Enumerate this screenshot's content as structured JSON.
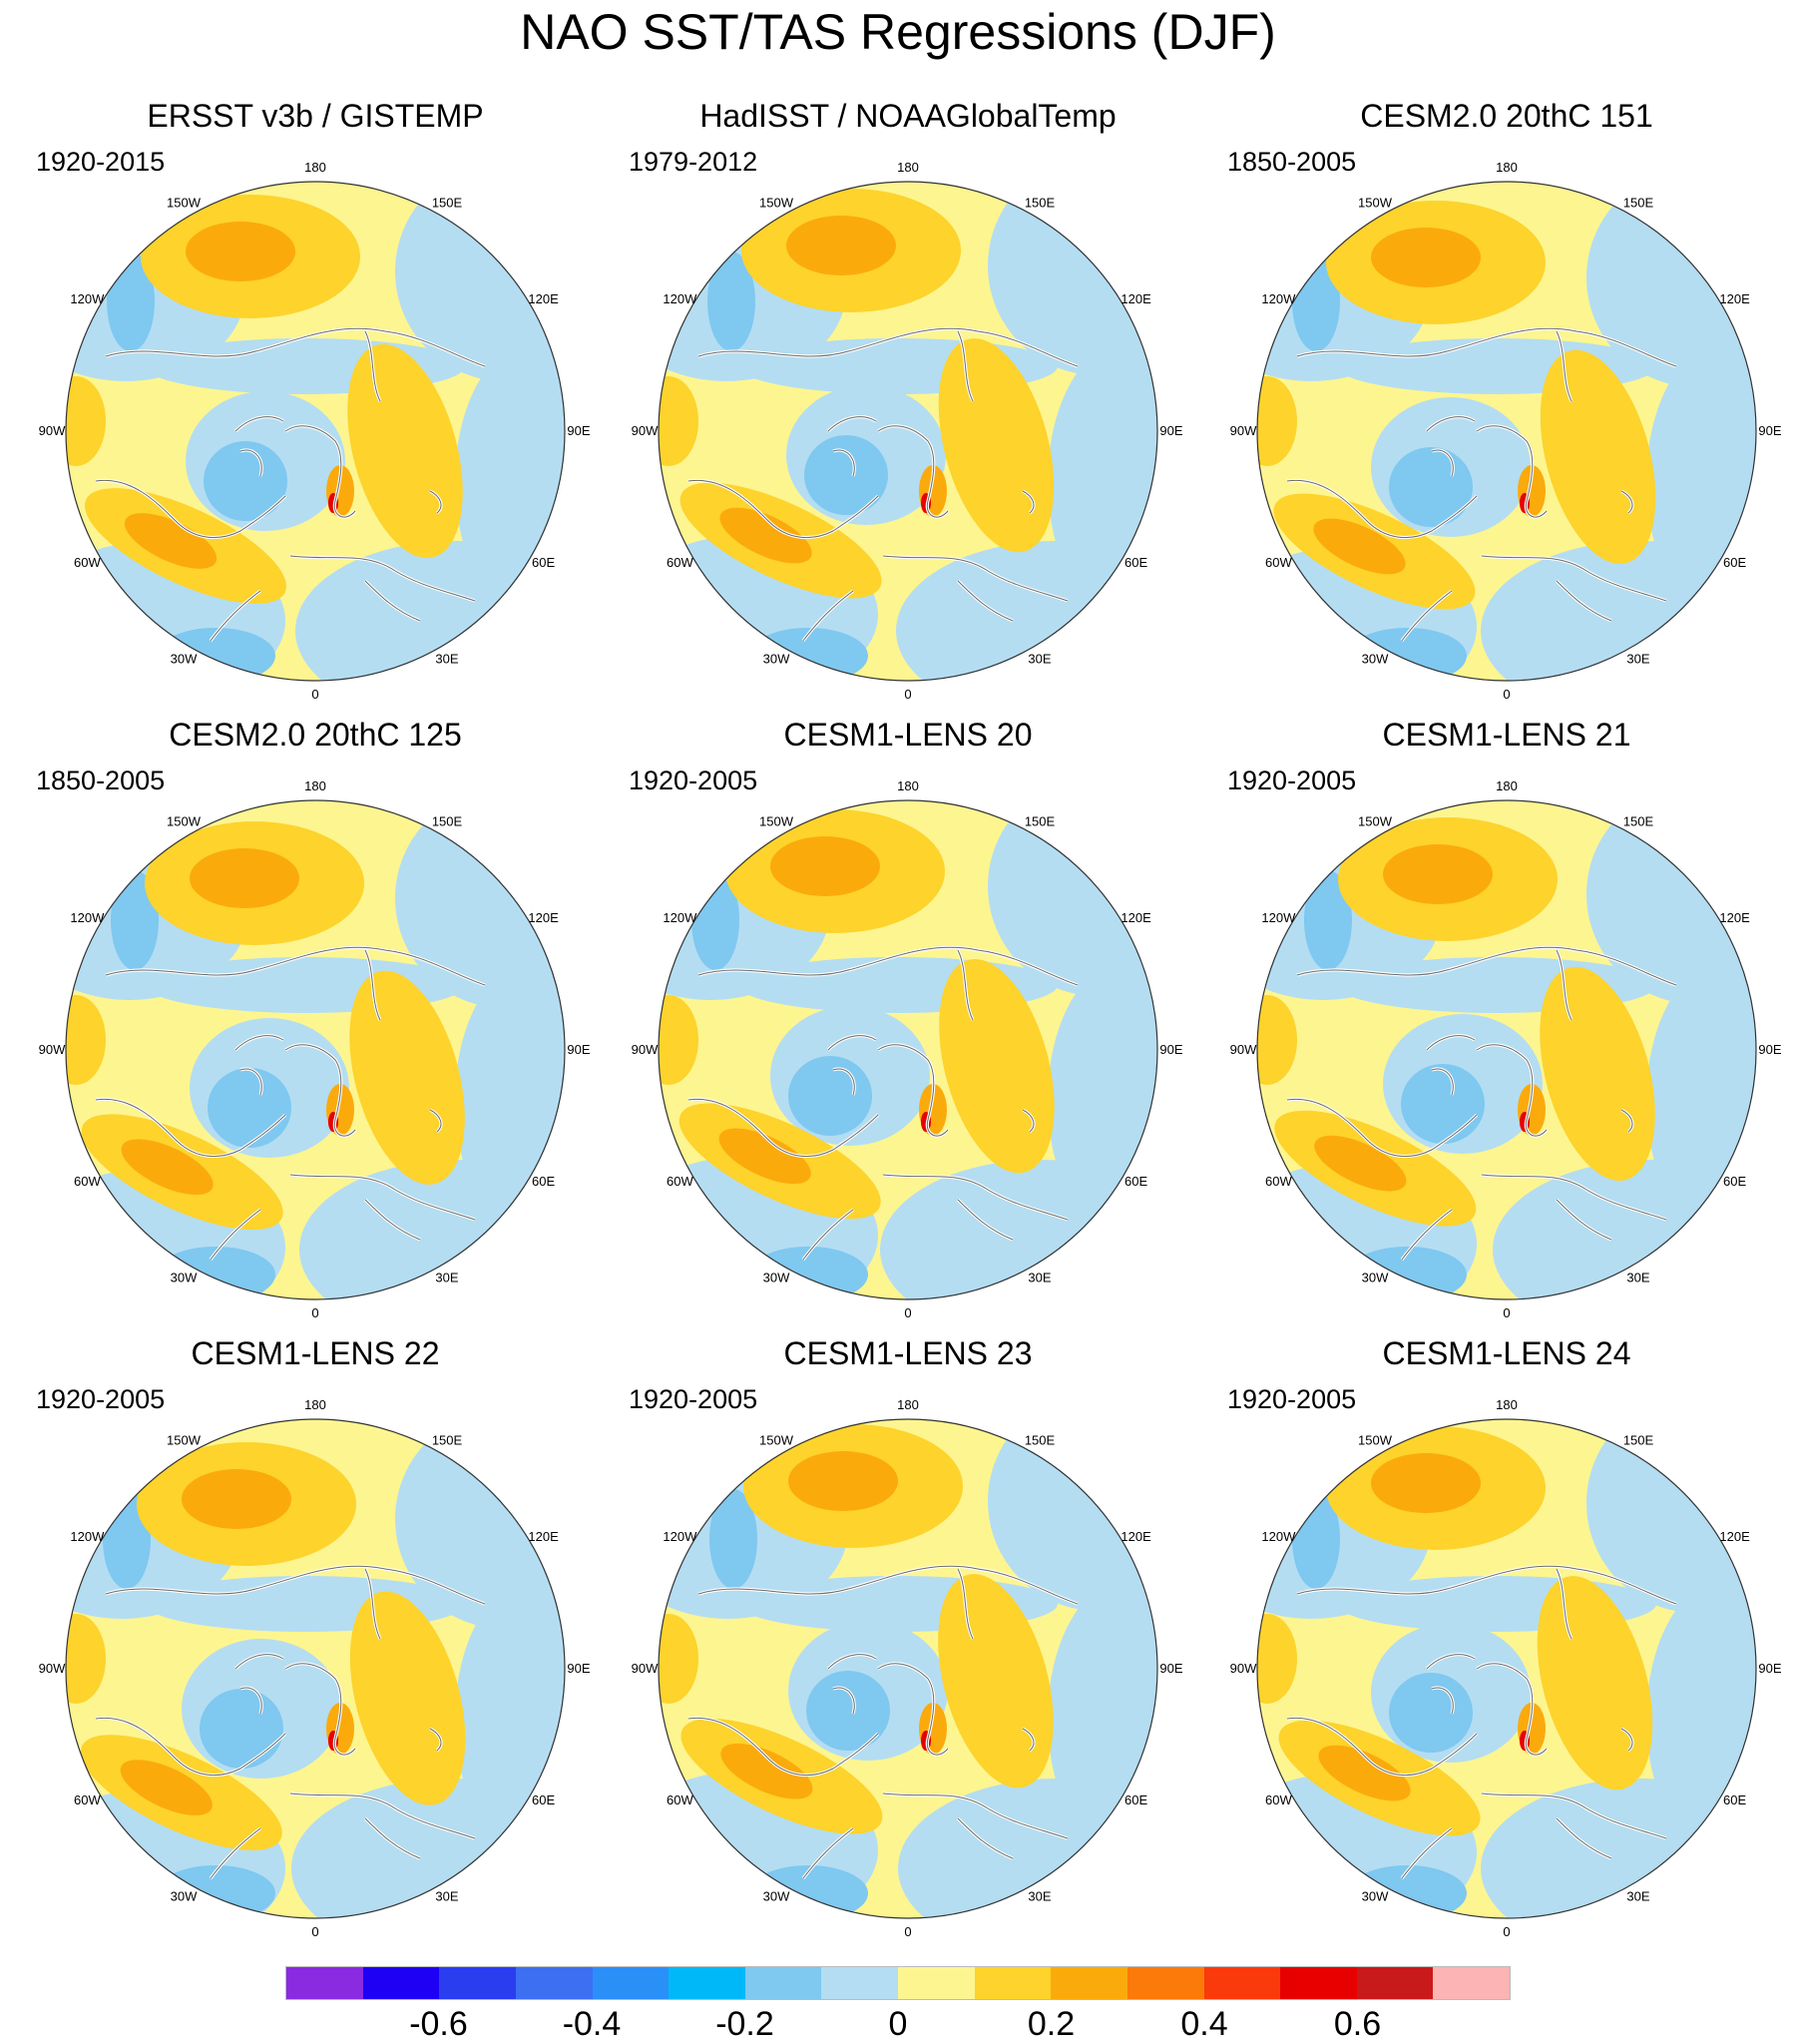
{
  "title": "NAO SST/TAS Regressions (DJF)",
  "panels": [
    {
      "title": "ERSST v3b / GISTEMP",
      "period": "1920-2015"
    },
    {
      "title": "HadISST / NOAAGlobalTemp",
      "period": "1979-2012"
    },
    {
      "title": "CESM2.0 20thC 151",
      "period": "1850-2005"
    },
    {
      "title": "CESM2.0 20thC 125",
      "period": "1850-2005"
    },
    {
      "title": "CESM1-LENS 20",
      "period": "1920-2005"
    },
    {
      "title": "CESM1-LENS 21",
      "period": "1920-2005"
    },
    {
      "title": "CESM1-LENS 22",
      "period": "1920-2005"
    },
    {
      "title": "CESM1-LENS 23",
      "period": "1920-2005"
    },
    {
      "title": "CESM1-LENS 24",
      "period": "1920-2005"
    }
  ],
  "longitude_labels": [
    "180",
    "150E",
    "120E",
    "90E",
    "60E",
    "30E",
    "0",
    "30W",
    "60W",
    "90W",
    "120W",
    "150W"
  ],
  "colorbar": {
    "colors": [
      "#8a2be2",
      "#1e00f5",
      "#2a3ef0",
      "#3c6ff2",
      "#2b8ff8",
      "#00b8f8",
      "#7fc8f0",
      "#b4ddf2",
      "#fdf590",
      "#fdd32c",
      "#fbaa0c",
      "#fb7a0a",
      "#fa3a0a",
      "#e70000",
      "#c81a1a",
      "#fcb4b4"
    ],
    "labels": [
      "-0.6",
      "-0.4",
      "-0.2",
      "0",
      "0.2",
      "0.4",
      "0.6"
    ]
  }
}
